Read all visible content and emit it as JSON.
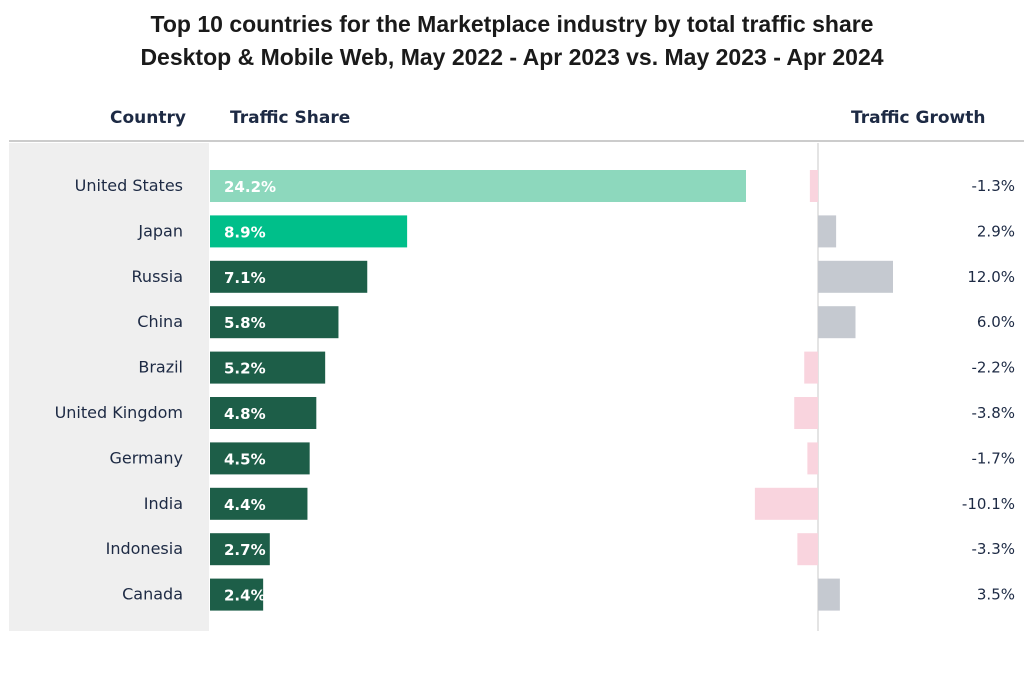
{
  "title_line1": "Top 10 countries for the Marketplace industry by total traffic share",
  "title_line2": "Desktop & Mobile Web, May 2022 - Apr 2023 vs. May 2023 - Apr 2024",
  "headers": {
    "country": "Country",
    "share": "Traffic Share",
    "growth": "Traffic Growth"
  },
  "colors": {
    "first_bar": "#8dd8bd",
    "second_bar": "#00bf8a",
    "other_bars": "#1d5e48",
    "growth_positive": "#c5c9d0",
    "growth_negative": "#f9d4de",
    "panel_bg": "#efefef"
  },
  "chart_data": {
    "type": "bar",
    "categories": [
      "United States",
      "Japan",
      "Russia",
      "China",
      "Brazil",
      "United Kingdom",
      "Germany",
      "India",
      "Indonesia",
      "Canada"
    ],
    "series": [
      {
        "name": "Traffic Share",
        "values": [
          24.2,
          8.9,
          7.1,
          5.8,
          5.2,
          4.8,
          4.5,
          4.4,
          2.7,
          2.4
        ],
        "labels": [
          "24.2%",
          "8.9%",
          "7.1%",
          "5.8%",
          "5.2%",
          "4.8%",
          "4.5%",
          "4.4%",
          "2.7%",
          "2.4%"
        ]
      },
      {
        "name": "Traffic Growth",
        "values": [
          -1.3,
          2.9,
          12.0,
          6.0,
          -2.2,
          -3.8,
          -1.7,
          -10.1,
          -3.3,
          3.5
        ],
        "labels": [
          "-1.3%",
          "2.9%",
          "12.0%",
          "6.0%",
          "-2.2%",
          "-3.8%",
          "-1.7%",
          "-10.1%",
          "-3.3%",
          "3.5%"
        ]
      }
    ],
    "title": "Top 10 countries for the Marketplace industry by total traffic share",
    "subtitle": "Desktop & Mobile Web, May 2022 - Apr 2023 vs. May 2023 - Apr 2024"
  }
}
